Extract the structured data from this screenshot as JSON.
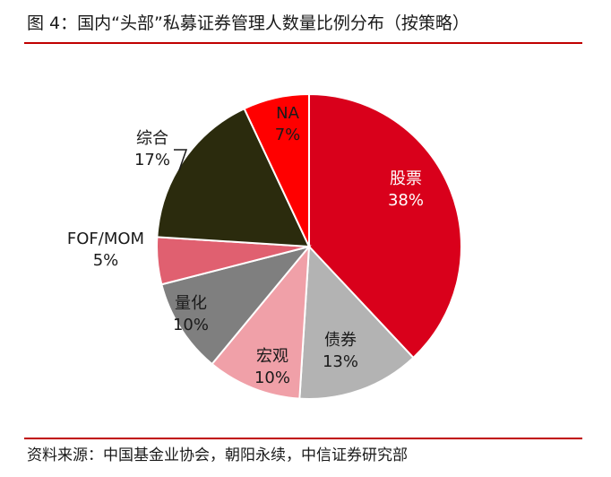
{
  "title": "图 4：国内“头部”私募证券管理人数量比例分布（按策略）",
  "source": "资料来源：中国基金业协会，朝阳永续，中信证券研究部",
  "chart_data": {
    "type": "pie",
    "title": "图 4：国内“头部”私募证券管理人数量比例分布（按策略）",
    "slices": [
      {
        "label": "股票",
        "value": 38,
        "pct": "38%",
        "color": "#d9001b"
      },
      {
        "label": "债券",
        "value": 13,
        "pct": "13%",
        "color": "#b3b3b3"
      },
      {
        "label": "宏观",
        "value": 10,
        "pct": "10%",
        "color": "#f0a0a8"
      },
      {
        "label": "量化",
        "value": 10,
        "pct": "10%",
        "color": "#7f7f7f"
      },
      {
        "label": "FOF/MOM",
        "value": 5,
        "pct": "5%",
        "color": "#e06070"
      },
      {
        "label": "综合",
        "value": 17,
        "pct": "17%",
        "color": "#2b2b0d"
      },
      {
        "label": "NA",
        "value": 7,
        "pct": "7%",
        "color": "#ff0000"
      }
    ]
  }
}
